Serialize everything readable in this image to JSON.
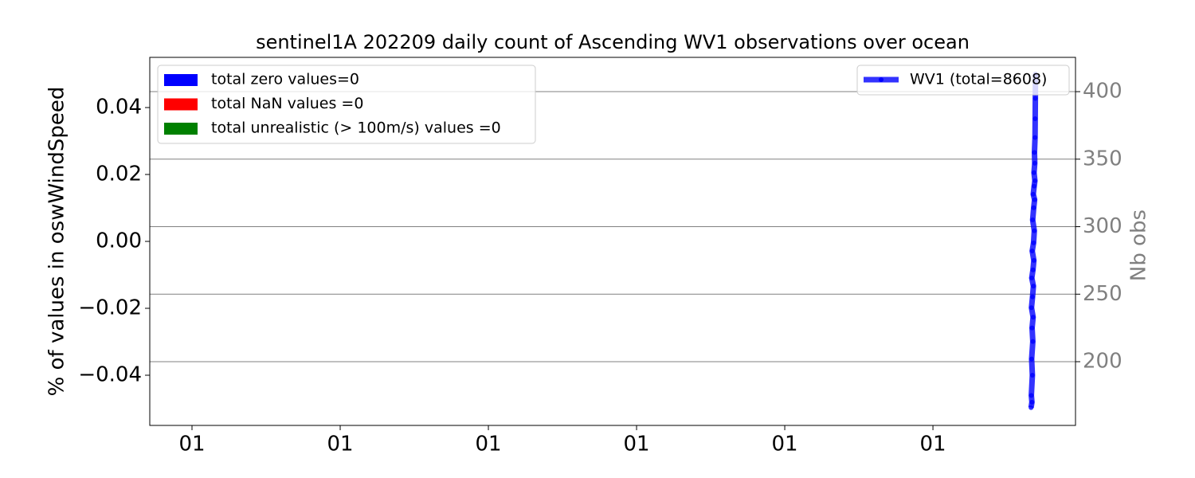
{
  "chart_data": {
    "type": "line",
    "title": "sentinel1A 202209 daily count of Ascending WV1 observations over ocean",
    "y_label": "% of values in oswWindSpeed",
    "y2_label": "Nb obs",
    "xlim": [
      -0.285,
      5.962
    ],
    "xticks": [
      {
        "value": 0,
        "label": "01"
      },
      {
        "value": 1,
        "label": "01"
      },
      {
        "value": 2,
        "label": "01"
      },
      {
        "value": 3,
        "label": "01"
      },
      {
        "value": 4,
        "label": "01"
      },
      {
        "value": 5,
        "label": "01"
      }
    ],
    "ylim": [
      -0.055,
      0.055
    ],
    "yticks": [
      {
        "value": -0.04,
        "label": "−0.04"
      },
      {
        "value": -0.02,
        "label": "−0.02"
      },
      {
        "value": 0,
        "label": "0.00"
      },
      0.02,
      0.04
    ],
    "y2lim": [
      152.8,
      425.4
    ],
    "y2ticks": [
      200,
      250,
      300,
      350,
      400
    ],
    "grid": true,
    "bar_series": [
      {
        "name": "total zero values=0",
        "color": "#0000ff"
      },
      {
        "name": "total NaN values =0",
        "color": "#ff0000"
      },
      {
        "name": "total unrealistic (> 100m/s) values =0",
        "color": "#008000"
      }
    ],
    "series": [
      {
        "name": "WV1 (total=8608)",
        "color": "#0000ff",
        "axis": "y2",
        "x": [
          5.662,
          5.668,
          5.664,
          5.671,
          5.666,
          5.674,
          5.669,
          5.676,
          5.665,
          5.672,
          5.678,
          5.667,
          5.675,
          5.681,
          5.67,
          5.679,
          5.684,
          5.673,
          5.68,
          5.686,
          5.677,
          5.683,
          5.688,
          5.682,
          5.687,
          5.685,
          5.689,
          5.69,
          5.691,
          5.692
        ],
        "values": [
          166,
          170,
          175,
          190,
          202,
          215,
          225,
          233,
          240,
          248,
          256,
          262,
          268,
          275,
          282,
          288,
          297,
          305,
          314,
          320,
          324,
          330,
          334,
          340,
          347,
          355,
          366,
          380,
          395,
          413
        ]
      }
    ]
  }
}
